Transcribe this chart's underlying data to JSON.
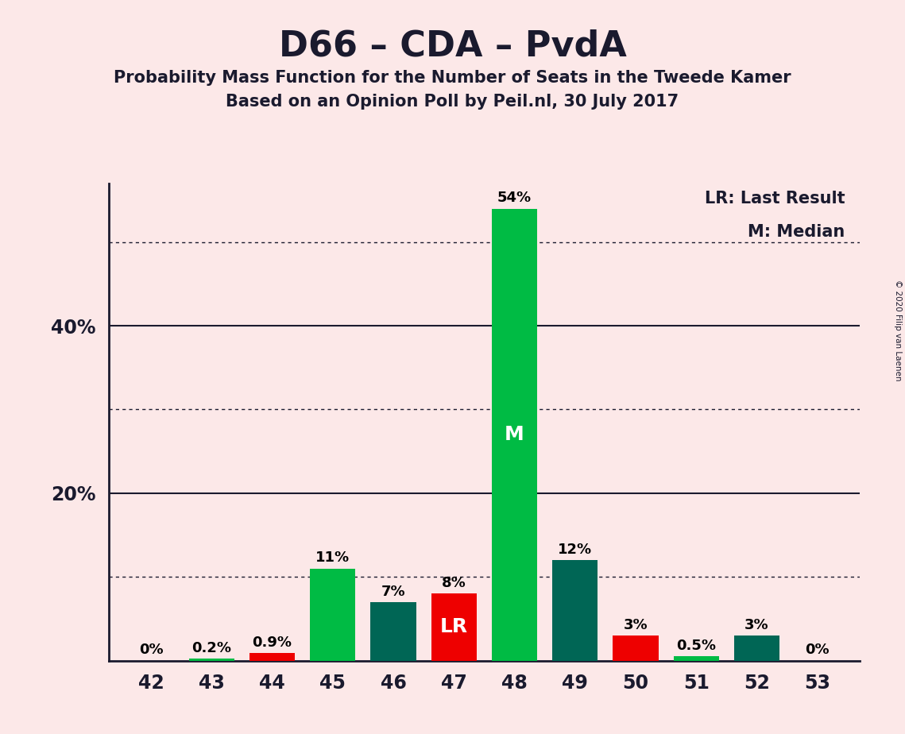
{
  "title": "D66 – CDA – PvdA",
  "subtitle1": "Probability Mass Function for the Number of Seats in the Tweede Kamer",
  "subtitle2": "Based on an Opinion Poll by Peil.nl, 30 July 2017",
  "copyright": "© 2020 Filip van Laenen",
  "categories": [
    42,
    43,
    44,
    45,
    46,
    47,
    48,
    49,
    50,
    51,
    52,
    53
  ],
  "values": [
    0.0,
    0.2,
    0.9,
    11.0,
    7.0,
    8.0,
    54.0,
    12.0,
    3.0,
    0.5,
    3.0,
    0.0
  ],
  "bar_colors": [
    "#00bb44",
    "#00bb44",
    "#ee0000",
    "#00bb44",
    "#006655",
    "#ee0000",
    "#00bb44",
    "#006655",
    "#ee0000",
    "#00bb44",
    "#006655",
    "#00bb44"
  ],
  "labels": [
    "0%",
    "0.2%",
    "0.9%",
    "11%",
    "7%",
    "8%",
    "54%",
    "12%",
    "3%",
    "0.5%",
    "3%",
    "0%"
  ],
  "bar_text": [
    "",
    "",
    "",
    "",
    "",
    "LR",
    "M",
    "",
    "",
    "",
    "",
    ""
  ],
  "background_color": "#fce8e8",
  "solid_gridlines": [
    20.0,
    40.0
  ],
  "dotted_gridlines": [
    10.0,
    30.0,
    50.0
  ],
  "ytick_positions": [
    20.0,
    40.0
  ],
  "ytick_labels": [
    "20%",
    "40%"
  ],
  "legend_lr": "LR: Last Result",
  "legend_m": "M: Median",
  "ylim": [
    0,
    57
  ],
  "bar_width": 0.75
}
